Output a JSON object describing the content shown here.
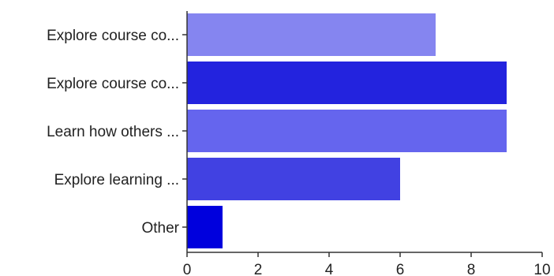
{
  "chart_data": {
    "type": "bar",
    "orientation": "horizontal",
    "categories": [
      "Explore course co...",
      "Explore course co...",
      "Learn how others ...",
      "Explore learning ...",
      "Other"
    ],
    "values": [
      7,
      9,
      9,
      6,
      1
    ],
    "bar_colors": [
      "#8585f0",
      "#2323de",
      "#6565ee",
      "#4141e2",
      "#0000dd"
    ],
    "title": "",
    "xlabel": "",
    "ylabel": "",
    "xlim": [
      0,
      10
    ],
    "xticks": [
      "0",
      "2",
      "4",
      "6",
      "8",
      "10"
    ],
    "grid": false,
    "legend": "none"
  }
}
